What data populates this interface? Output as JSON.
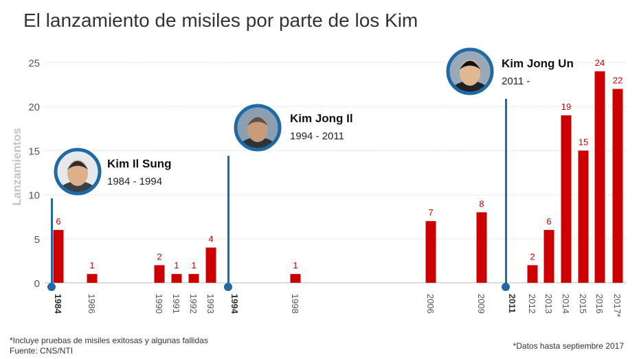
{
  "title": "El lanzamiento de misiles por parte de los Kim",
  "chart_data": {
    "type": "bar",
    "title": "El lanzamiento de misiles por parte de los Kim",
    "xlabel": "",
    "ylabel": "Lanzamientos",
    "ylim": [
      0,
      25
    ],
    "yticks": [
      0,
      5,
      10,
      15,
      20,
      25
    ],
    "grid": true,
    "categories": [
      "1984",
      "1986",
      "1990",
      "1991",
      "1992",
      "1993",
      "1994",
      "1998",
      "2006",
      "2009",
      "2011",
      "2012",
      "2013",
      "2014",
      "2015",
      "2016",
      "2017*"
    ],
    "values": [
      6,
      1,
      2,
      1,
      1,
      4,
      null,
      1,
      7,
      8,
      null,
      2,
      6,
      19,
      15,
      24,
      22
    ],
    "bold_categories": [
      "1984",
      "1994",
      "2011"
    ],
    "colors": {
      "bar": "#cc0000",
      "marker": "#1f6aa5",
      "grid": "#d9d9d9",
      "axis_text": "#555555",
      "value_label": "#cc0000"
    },
    "leaders": [
      {
        "name": "Kim Il Sung",
        "period": "1984 - 1994",
        "start": "1984",
        "icon": "kim-il-sung-portrait-icon"
      },
      {
        "name": "Kim Jong Il",
        "period": "1994 - 2011",
        "start": "1994",
        "icon": "kim-jong-il-portrait-icon"
      },
      {
        "name": "Kim Jong Un",
        "period": "2011 -",
        "start": "2011",
        "icon": "kim-jong-un-portrait-icon"
      }
    ]
  },
  "footnote": {
    "line1": "*Incluye pruebas de misiles exitosas y algunas fallidas",
    "line2": "Fuente: CNS/NTI"
  },
  "note_right": "*Datos hasta septiembre 2017"
}
